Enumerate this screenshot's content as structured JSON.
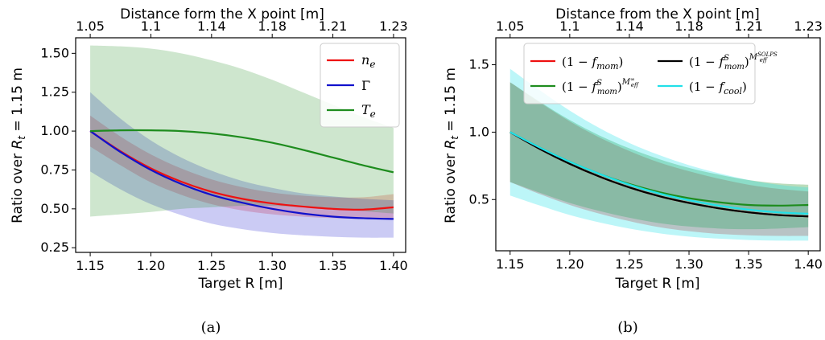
{
  "chart_data": [
    {
      "type": "line",
      "caption": "(a)",
      "xlabel": "Target R [m]",
      "ylabel": "Ratio over R_t = 1.15 m",
      "top_xlabel": "Distance form the X point [m]",
      "top_ticks": [
        "1.05",
        "1.1",
        "1.14",
        "1.18",
        "1.21",
        "1.23"
      ],
      "xlim": [
        1.138,
        1.41
      ],
      "ylim": [
        0.22,
        1.6
      ],
      "xticks": [
        1.15,
        1.2,
        1.25,
        1.3,
        1.35,
        1.4
      ],
      "xtick_labels": [
        "1.15",
        "1.20",
        "1.25",
        "1.30",
        "1.35",
        "1.40"
      ],
      "yticks": [
        0.25,
        0.5,
        0.75,
        1.0,
        1.25,
        1.5
      ],
      "ytick_labels": [
        "0.25",
        "0.50",
        "0.75",
        "1.00",
        "1.25",
        "1.50"
      ],
      "x": [
        1.15,
        1.175,
        1.2,
        1.225,
        1.25,
        1.275,
        1.3,
        1.325,
        1.35,
        1.375,
        1.4
      ],
      "legend_position": "top-right",
      "series": [
        {
          "name": "n_e",
          "color": "#ee1111",
          "values": [
            1.0,
            0.87,
            0.76,
            0.675,
            0.61,
            0.565,
            0.535,
            0.515,
            0.5,
            0.495,
            0.51
          ],
          "upper": [
            1.1,
            0.965,
            0.85,
            0.76,
            0.69,
            0.64,
            0.605,
            0.585,
            0.575,
            0.575,
            0.595
          ],
          "lower": [
            0.9,
            0.78,
            0.67,
            0.59,
            0.53,
            0.49,
            0.465,
            0.45,
            0.44,
            0.435,
            0.44
          ]
        },
        {
          "name": "Γ",
          "color": "#1111cc",
          "values": [
            1.0,
            0.865,
            0.75,
            0.66,
            0.59,
            0.54,
            0.5,
            0.47,
            0.45,
            0.44,
            0.435
          ],
          "upper": [
            1.25,
            1.08,
            0.94,
            0.83,
            0.745,
            0.68,
            0.635,
            0.6,
            0.58,
            0.565,
            0.555
          ],
          "lower": [
            0.74,
            0.625,
            0.53,
            0.46,
            0.405,
            0.37,
            0.345,
            0.33,
            0.32,
            0.315,
            0.315
          ]
        },
        {
          "name": "T_e",
          "color": "#1e8c1e",
          "values": [
            1.0,
            1.005,
            1.005,
            1.0,
            0.985,
            0.96,
            0.925,
            0.88,
            0.83,
            0.78,
            0.735
          ],
          "upper": [
            1.55,
            1.545,
            1.53,
            1.5,
            1.455,
            1.4,
            1.33,
            1.25,
            1.17,
            1.09,
            1.02
          ],
          "lower": [
            0.45,
            0.465,
            0.48,
            0.5,
            0.51,
            0.52,
            0.52,
            0.51,
            0.5,
            0.485,
            0.47
          ]
        }
      ]
    },
    {
      "type": "line",
      "caption": "(b)",
      "xlabel": "Target R [m]",
      "ylabel": "Ratio over R_t = 1.15 m",
      "top_xlabel": "Distance from the X point [m]",
      "top_ticks": [
        "1.05",
        "1.1",
        "1.14",
        "1.18",
        "1.21",
        "1.23"
      ],
      "xlim": [
        1.138,
        1.41
      ],
      "ylim": [
        0.12,
        1.7
      ],
      "xticks": [
        1.15,
        1.2,
        1.25,
        1.3,
        1.35,
        1.4
      ],
      "xtick_labels": [
        "1.15",
        "1.20",
        "1.25",
        "1.30",
        "1.35",
        "1.40"
      ],
      "yticks": [
        0.5,
        1.0,
        1.5
      ],
      "ytick_labels": [
        "0.5",
        "1.0",
        "1.5"
      ],
      "x": [
        1.15,
        1.175,
        1.2,
        1.225,
        1.25,
        1.275,
        1.3,
        1.325,
        1.35,
        1.375,
        1.4
      ],
      "legend_position": "top",
      "series": [
        {
          "name": "(1 − f_mom)",
          "color": "#ee1111",
          "values": [
            1.0,
            0.875,
            0.765,
            0.67,
            0.59,
            0.525,
            0.475,
            0.435,
            0.405,
            0.385,
            0.375
          ],
          "upper": [
            1.37,
            1.22,
            1.08,
            0.96,
            0.86,
            0.775,
            0.71,
            0.655,
            0.61,
            0.58,
            0.56
          ],
          "lower": [
            0.63,
            0.54,
            0.46,
            0.395,
            0.34,
            0.295,
            0.265,
            0.245,
            0.235,
            0.23,
            0.23
          ]
        },
        {
          "name": "(1 − f^S_mom)^{M^∞_eff}",
          "color": "#1e8c1e",
          "values": [
            1.0,
            0.885,
            0.78,
            0.69,
            0.615,
            0.555,
            0.51,
            0.48,
            0.46,
            0.455,
            0.46
          ],
          "upper": [
            1.37,
            1.225,
            1.09,
            0.975,
            0.88,
            0.8,
            0.735,
            0.685,
            0.645,
            0.62,
            0.61
          ],
          "lower": [
            0.63,
            0.55,
            0.475,
            0.415,
            0.365,
            0.325,
            0.3,
            0.285,
            0.28,
            0.285,
            0.295
          ]
        },
        {
          "name": "(1 − f^S_mom)^{M^SOLPS_eff}",
          "color": "#000000",
          "values": [
            1.0,
            0.875,
            0.765,
            0.67,
            0.59,
            0.525,
            0.475,
            0.435,
            0.405,
            0.385,
            0.375
          ],
          "upper": null,
          "lower": null
        },
        {
          "name": "(1 − f_cool)",
          "color": "#22e0e8",
          "values": [
            1.0,
            0.885,
            0.78,
            0.69,
            0.61,
            0.545,
            0.495,
            0.455,
            0.425,
            0.405,
            0.395
          ],
          "upper": [
            1.47,
            1.31,
            1.16,
            1.03,
            0.92,
            0.83,
            0.755,
            0.695,
            0.645,
            0.61,
            0.59
          ],
          "lower": [
            0.53,
            0.455,
            0.385,
            0.33,
            0.285,
            0.25,
            0.225,
            0.21,
            0.2,
            0.195,
            0.195
          ]
        }
      ]
    }
  ]
}
